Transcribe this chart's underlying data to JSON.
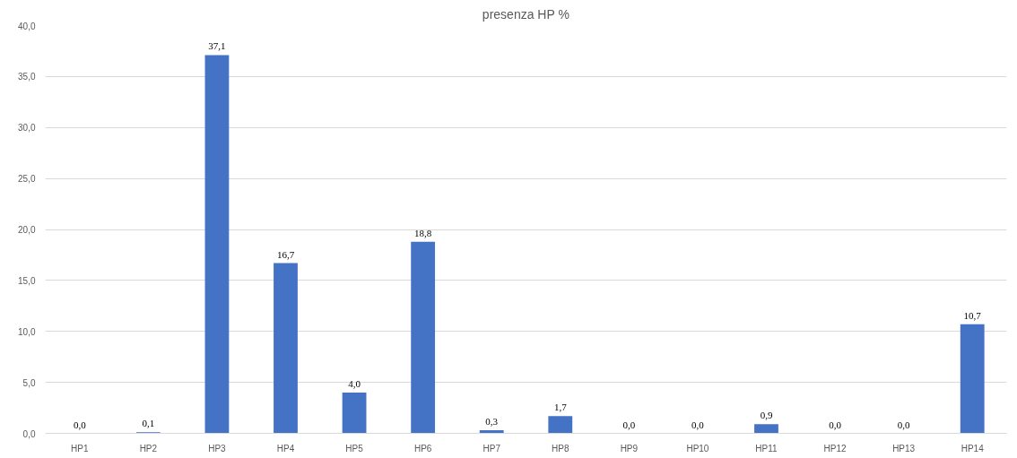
{
  "chart_data": {
    "type": "bar",
    "title": "presenza HP %",
    "categories": [
      "HP1",
      "HP2",
      "HP3",
      "HP4",
      "HP5",
      "HP6",
      "HP7",
      "HP8",
      "HP9",
      "HP10",
      "HP11",
      "HP12",
      "HP13",
      "HP14"
    ],
    "values": [
      0.0,
      0.1,
      37.1,
      16.7,
      4.0,
      18.8,
      0.3,
      1.7,
      0.0,
      0.0,
      0.9,
      0.0,
      0.0,
      10.7
    ],
    "value_labels": [
      "0,0",
      "0,1",
      "37,1",
      "16,7",
      "4,0",
      "18,8",
      "0,3",
      "1,7",
      "0,0",
      "0,0",
      "0,9",
      "0,0",
      "0,0",
      "10,7"
    ],
    "color": "#4472c4",
    "ylim": [
      0,
      40
    ],
    "yticks": [
      {
        "value": 0,
        "label": "0,0"
      },
      {
        "value": 5,
        "label": "5,0"
      },
      {
        "value": 10,
        "label": "10,0"
      },
      {
        "value": 15,
        "label": "15,0"
      },
      {
        "value": 20,
        "label": "20,0"
      },
      {
        "value": 25,
        "label": "25,0"
      },
      {
        "value": 30,
        "label": "30,0"
      },
      {
        "value": 35,
        "label": "35,0"
      },
      {
        "value": 40,
        "label": "40,0"
      }
    ],
    "grid": "y"
  }
}
